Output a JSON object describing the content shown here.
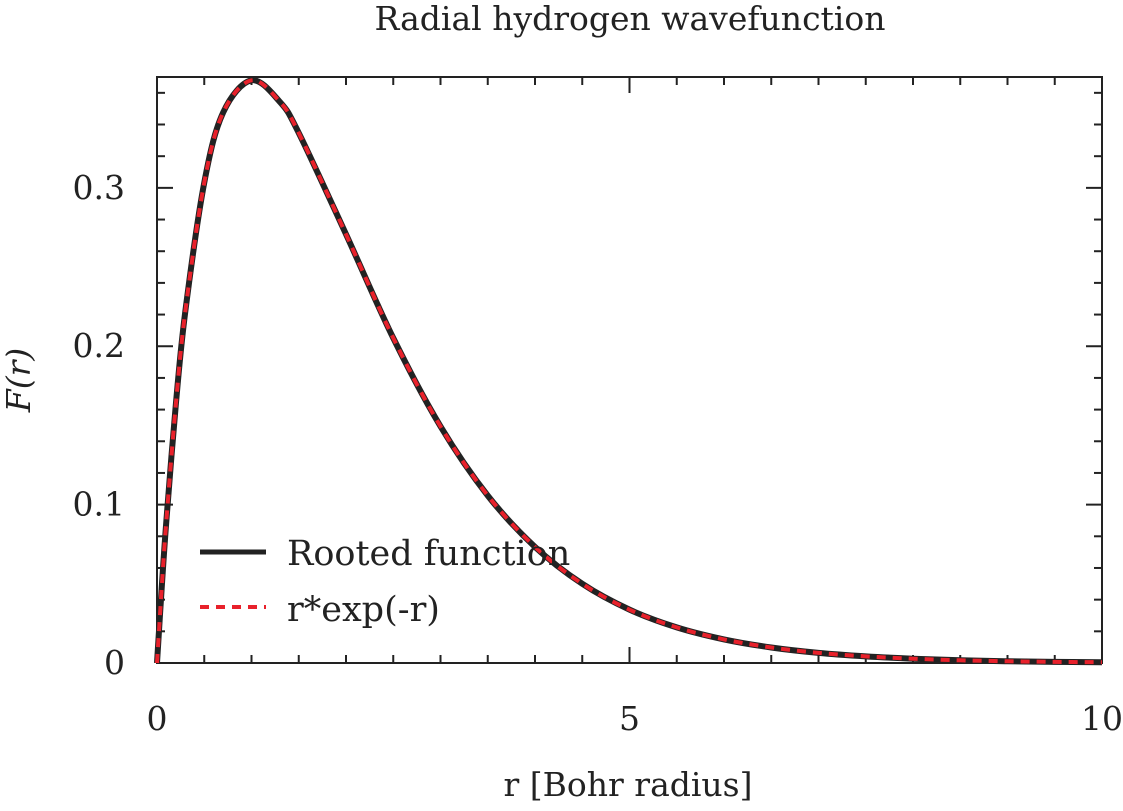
{
  "chart_data": {
    "type": "line",
    "title": "Radial hydrogen wavefunction",
    "xlabel": "r [Bohr radius]",
    "ylabel": "F(r)",
    "xlim": [
      0,
      10
    ],
    "ylim": [
      0,
      0.37
    ],
    "x_ticks": [
      0,
      5,
      10
    ],
    "x_tick_labels": [
      "0",
      "5",
      "10"
    ],
    "x_minor_step": 0.5,
    "y_ticks": [
      0,
      0.1,
      0.2,
      0.3
    ],
    "y_tick_labels": [
      "0",
      "0.1",
      "0.2",
      "0.3"
    ],
    "y_minor_step": 0.02,
    "grid": false,
    "legend_position": "lower-left",
    "series": [
      {
        "name": "Rooted function",
        "color": "#222222",
        "style": "solid",
        "x": [
          0,
          0.05,
          0.1,
          0.2,
          0.3,
          0.5,
          0.7,
          1.0,
          1.3,
          1.5,
          2.0,
          2.5,
          3.0,
          3.5,
          4.0,
          4.5,
          5.0,
          5.5,
          6.0,
          6.5,
          7.0,
          7.5,
          8.0,
          8.5,
          9.0,
          9.5,
          10.0
        ],
        "y": [
          0,
          0.0476,
          0.0905,
          0.1637,
          0.2222,
          0.3033,
          0.3476,
          0.3679,
          0.3543,
          0.3347,
          0.2707,
          0.2052,
          0.1494,
          0.1057,
          0.0733,
          0.05,
          0.0337,
          0.0225,
          0.0149,
          0.0098,
          0.0064,
          0.0042,
          0.0027,
          0.0017,
          0.0011,
          0.0007,
          0.0005
        ]
      },
      {
        "name": "r*exp(-r)",
        "color": "#e8212b",
        "style": "dashed",
        "x": [
          0,
          0.05,
          0.1,
          0.2,
          0.3,
          0.5,
          0.7,
          1.0,
          1.3,
          1.5,
          2.0,
          2.5,
          3.0,
          3.5,
          4.0,
          4.5,
          5.0,
          5.5,
          6.0,
          6.5,
          7.0,
          7.5,
          8.0,
          8.5,
          9.0,
          9.5,
          10.0
        ],
        "y": [
          0,
          0.0476,
          0.0905,
          0.1637,
          0.2222,
          0.3033,
          0.3476,
          0.3679,
          0.3543,
          0.3347,
          0.2707,
          0.2052,
          0.1494,
          0.1057,
          0.0733,
          0.05,
          0.0337,
          0.0225,
          0.0149,
          0.0098,
          0.0064,
          0.0042,
          0.0027,
          0.0017,
          0.0011,
          0.0007,
          0.0005
        ]
      }
    ]
  }
}
